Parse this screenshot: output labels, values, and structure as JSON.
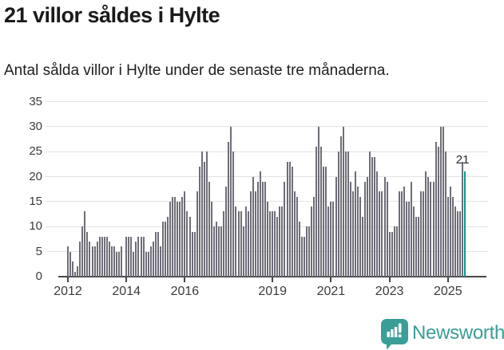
{
  "header": {
    "title": "21 villor såldes i Hylte",
    "subtitle": "Antal sålda villor i Hylte under de senaste tre månaderna."
  },
  "chart_data": {
    "type": "bar",
    "title": "21 villor såldes i Hylte",
    "subtitle": "Antal sålda villor i Hylte under de senaste tre månaderna.",
    "xlabel": "",
    "ylabel": "",
    "frequency": "monthly",
    "start": "2012-01",
    "end": "2025-08",
    "ylim": [
      0,
      35
    ],
    "grid": "horizontal",
    "legend": "none",
    "y_ticks": [
      0,
      5,
      10,
      15,
      20,
      25,
      30,
      35
    ],
    "x_ticks": [
      {
        "label": "2012",
        "index": 0
      },
      {
        "label": "2014",
        "index": 24
      },
      {
        "label": "2016",
        "index": 48
      },
      {
        "label": "2019",
        "index": 84
      },
      {
        "label": "2021",
        "index": 108
      },
      {
        "label": "2023",
        "index": 132
      },
      {
        "label": "2025",
        "index": 156
      }
    ],
    "values": [
      6,
      5,
      3,
      1,
      2,
      7,
      10,
      13,
      9,
      7,
      6,
      6,
      7,
      8,
      8,
      8,
      8,
      7,
      6,
      6,
      5,
      5,
      6,
      0,
      8,
      8,
      8,
      5,
      7,
      8,
      8,
      8,
      5,
      5,
      6,
      7,
      9,
      9,
      6,
      11,
      11,
      12,
      15,
      16,
      16,
      15,
      15,
      16,
      17,
      13,
      12,
      9,
      9,
      17,
      22,
      25,
      23,
      25,
      19,
      15,
      10,
      11,
      10,
      10,
      13,
      18,
      27,
      30,
      25,
      14,
      13,
      13,
      10,
      14,
      13,
      17,
      20,
      17,
      19,
      21,
      19,
      19,
      15,
      13,
      13,
      13,
      12,
      14,
      14,
      19,
      23,
      23,
      22,
      17,
      16,
      11,
      8,
      8,
      10,
      10,
      14,
      16,
      26,
      30,
      26,
      22,
      22,
      14,
      15,
      15,
      20,
      25,
      28,
      30,
      25,
      25,
      19,
      17,
      21,
      18,
      16,
      12,
      19,
      20,
      25,
      24,
      24,
      21,
      17,
      17,
      20,
      19,
      9,
      9,
      10,
      10,
      17,
      17,
      18,
      15,
      15,
      19,
      14,
      12,
      12,
      17,
      17,
      21,
      20,
      19,
      19,
      27,
      26,
      30,
      30,
      25,
      16,
      18,
      16,
      14,
      13,
      13,
      23,
      21
    ],
    "highlight": {
      "index": 163,
      "value": 21,
      "label": "21"
    },
    "colors": {
      "bar": "#6f6d77",
      "highlight": "#0a9a93",
      "axis": "#47474b",
      "gridline": "#e3e3e3",
      "tick_label": "#3b3b3b"
    }
  },
  "footer": {
    "brand": "Newsworthy",
    "brand_color": "#3a9e97",
    "logo_icon": "newsworthy-speech-bubble-chart-icon"
  }
}
